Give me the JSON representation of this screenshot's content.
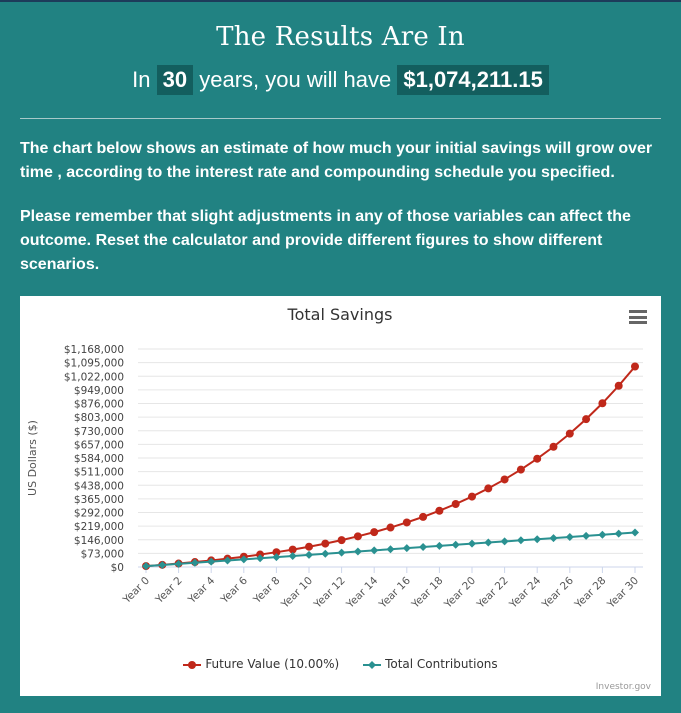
{
  "header": {
    "title": "The Results Are In",
    "subtitle_prefix": "In",
    "years": "30",
    "subtitle_middle": "years, you will have",
    "amount": "$1,074,211.15"
  },
  "paragraphs": [
    "The chart below shows an estimate of how much your initial savings will grow over time , according to the interest rate and compounding schedule you specified.",
    "Please remember that slight adjustments in any of those variables can affect the outcome. Reset the calculator and provide different figures to show different scenarios."
  ],
  "chart": {
    "menu_icon": "hamburger-menu-icon",
    "credit": "Investor.gov",
    "colors": {
      "future_value": "#c0281a",
      "contributions": "#2a9191",
      "grid": "#e6e6e6",
      "axis": "#ccd6eb"
    }
  },
  "chart_data": {
    "type": "line",
    "title": "Total Savings",
    "xlabel": "",
    "ylabel": "US Dollars ($)",
    "ylim": [
      0,
      1168000
    ],
    "yticks": [
      "$0",
      "$73,000",
      "$146,000",
      "$219,000",
      "$292,000",
      "$365,000",
      "$438,000",
      "$511,000",
      "$584,000",
      "$657,000",
      "$730,000",
      "$803,000",
      "$876,000",
      "$949,000",
      "$1,022,000",
      "$1,095,000",
      "$1,168,000"
    ],
    "x": [
      "Year 0",
      "Year 1",
      "Year 2",
      "Year 3",
      "Year 4",
      "Year 5",
      "Year 6",
      "Year 7",
      "Year 8",
      "Year 9",
      "Year 10",
      "Year 11",
      "Year 12",
      "Year 13",
      "Year 14",
      "Year 15",
      "Year 16",
      "Year 17",
      "Year 18",
      "Year 19",
      "Year 20",
      "Year 21",
      "Year 22",
      "Year 23",
      "Year 24",
      "Year 25",
      "Year 26",
      "Year 27",
      "Year 28",
      "Year 29",
      "Year 30"
    ],
    "xtick_labels": [
      "Year 0",
      "Year 2",
      "Year 4",
      "Year 6",
      "Year 8",
      "Year 10",
      "Year 12",
      "Year 14",
      "Year 16",
      "Year 18",
      "Year 20",
      "Year 22",
      "Year 24",
      "Year 26",
      "Year 28",
      "Year 30"
    ],
    "grid": true,
    "legend_position": "bottom",
    "series": [
      {
        "name": "Future Value (10.00%)",
        "color": "#c0281a",
        "marker": "circle",
        "values": [
          5000,
          11500,
          18650,
          26515,
          35166.5,
          44683.15,
          55151.47,
          66666.62,
          79333.27,
          93266.6,
          108593.26,
          125452.59,
          143997.85,
          164397.63,
          186837.4,
          211521.14,
          238673.25,
          268540.58,
          301394.64,
          337534.1,
          377287.51,
          421016.26,
          469117.89,
          522029.68,
          580232.65,
          644255.91,
          714681.5,
          792149.65,
          877364.62,
          971101.08,
          1074211.15
        ]
      },
      {
        "name": "Total Contributions",
        "color": "#2a9191",
        "marker": "diamond",
        "values": [
          5000,
          11000,
          17000,
          23000,
          29000,
          35000,
          41000,
          47000,
          53000,
          59000,
          65000,
          71000,
          77000,
          83000,
          89000,
          95000,
          101000,
          107000,
          113000,
          119000,
          125000,
          131000,
          137000,
          143000,
          149000,
          155000,
          161000,
          167000,
          173000,
          179000,
          185000
        ]
      }
    ]
  }
}
